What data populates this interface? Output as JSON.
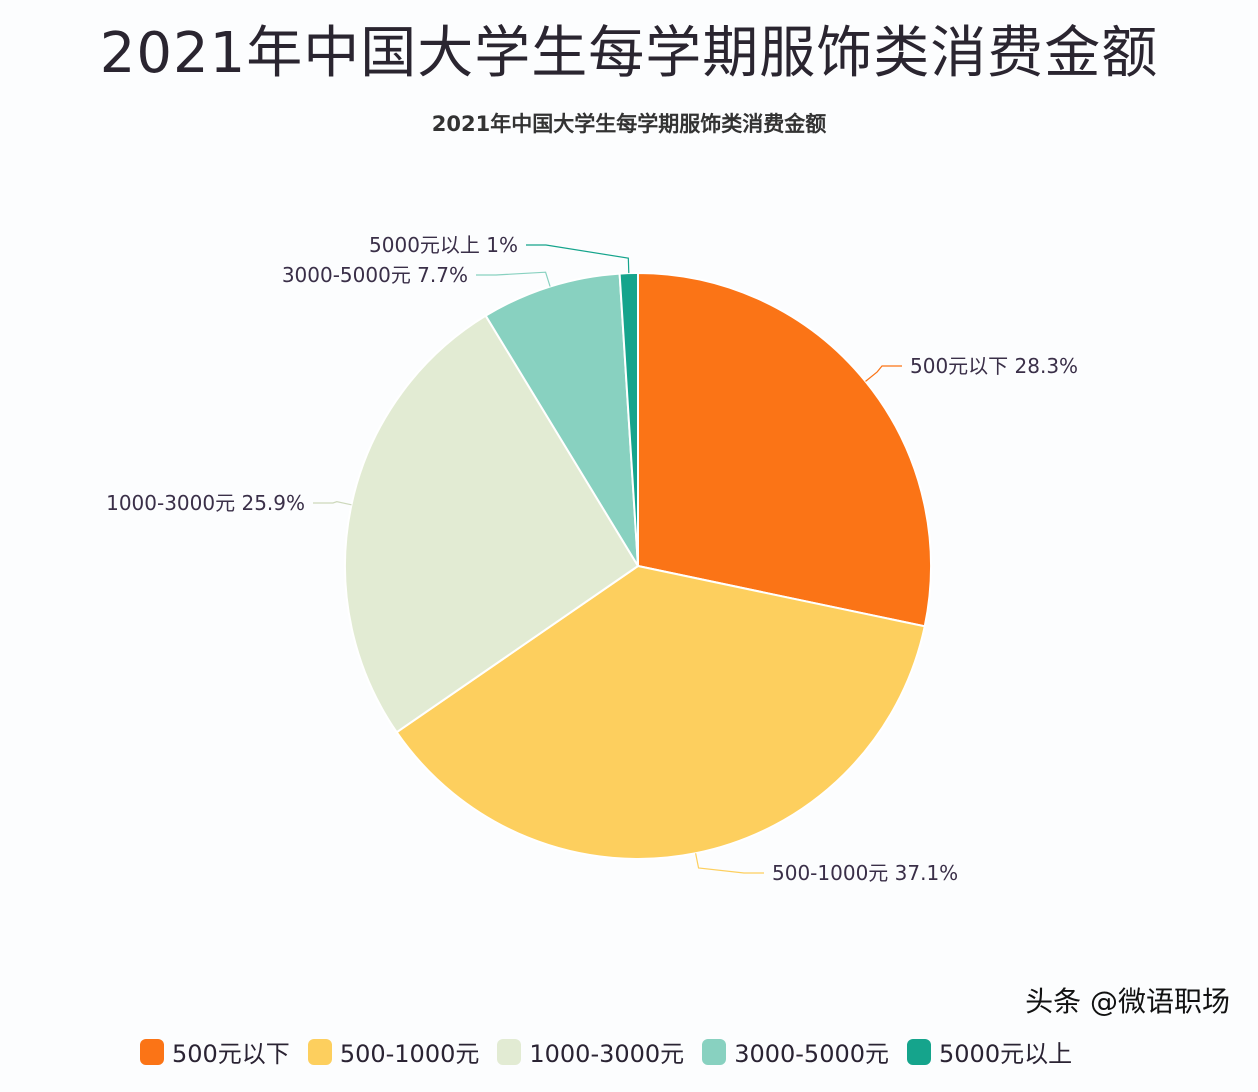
{
  "header": {
    "title": "2021年中国大学生每学期服饰类消费金额"
  },
  "chart_data": {
    "type": "pie",
    "title": "2021年中国大学生每学期服饰类消费金额",
    "categories": [
      "500元以下",
      "500-1000元",
      "1000-3000元",
      "3000-5000元",
      "5000元以上"
    ],
    "values": [
      28.3,
      37.1,
      25.9,
      7.7,
      1
    ],
    "labels": [
      "500元以下 28.3%",
      "500-1000元 37.1%",
      "1000-3000元 25.9%",
      "3000-5000元 7.7%",
      "5000元以上 1%"
    ],
    "colors": [
      "#fb7416",
      "#fdcf5e",
      "#e2ebd3",
      "#88d1c0",
      "#15a48c"
    ],
    "start_angle": "top",
    "direction": "clockwise",
    "legend": "bottom"
  },
  "watermark": "头条 @微语职场"
}
